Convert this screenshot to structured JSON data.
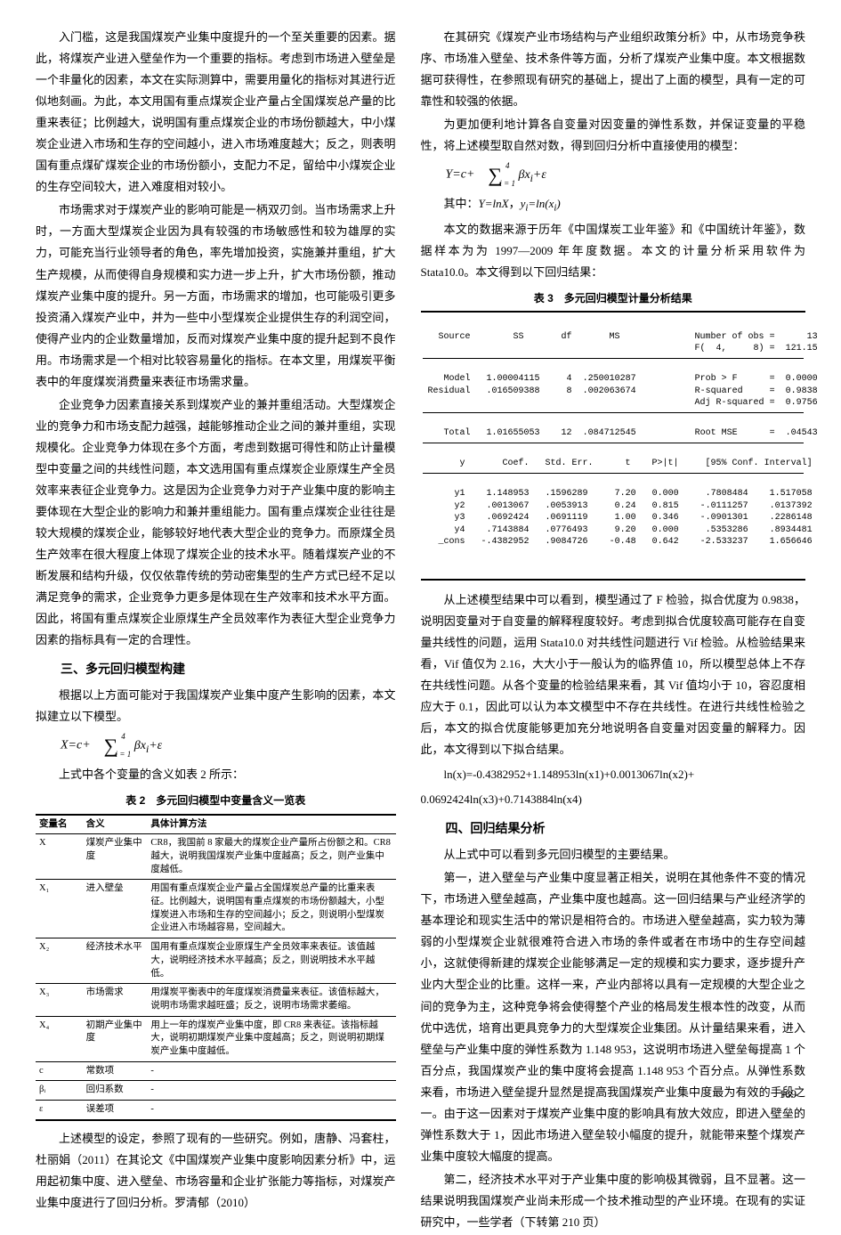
{
  "page_number": "169",
  "left_col": {
    "p1": "入门槛，这是我国煤炭产业集中度提升的一个至关重要的因素。据此，将煤炭产业进入壁垒作为一个重要的指标。考虑到市场进入壁垒是一个非量化的因素，本文在实际测算中，需要用量化的指标对其进行近似地刻画。为此，本文用国有重点煤炭企业产量占全国煤炭总产量的比重来表征；比例越大，说明国有重点煤炭企业的市场份额越大，中小煤炭企业进入市场和生存的空间越小，进入市场难度越大；反之，则表明国有重点煤矿煤炭企业的市场份额小，支配力不足，留给中小煤炭企业的生存空间较大，进入难度相对较小。",
    "p2": "市场需求对于煤炭产业的影响可能是一柄双刃剑。当市场需求上升时，一方面大型煤炭企业因为具有较强的市场敏感性和较为雄厚的实力，可能充当行业领导者的角色，率先增加投资，实施兼并重组，扩大生产规模，从而使得自身规模和实力进一步上升，扩大市场份额，推动煤炭产业集中度的提升。另一方面，市场需求的增加，也可能吸引更多投资涌入煤炭产业中，并为一些中小型煤炭企业提供生存的利润空间，使得产业内的企业数量增加，反而对煤炭产业集中度的提升起到不良作用。市场需求是一个相对比较容易量化的指标。在本文里，用煤炭平衡表中的年度煤炭消费量来表征市场需求量。",
    "p3": "企业竞争力因素直接关系到煤炭产业的兼并重组活动。大型煤炭企业的竞争力和市场支配力越强，越能够推动企业之间的兼并重组，实现规模化。企业竞争力体现在多个方面，考虑到数据可得性和防止计量模型中变量之间的共线性问题，本文选用国有重点煤炭企业原煤生产全员效率来表征企业竞争力。这是因为企业竞争力对于产业集中度的影响主要体现在大型企业的影响力和兼并重组能力。国有重点煤炭企业往往是较大规模的煤炭企业，能够较好地代表大型企业的竞争力。而原煤全员生产效率在很大程度上体现了煤炭企业的技术水平。随着煤炭产业的不断发展和结构升级，仅仅依靠传统的劳动密集型的生产方式已经不足以满足竞争的需求，企业竞争力更多是体现在生产效率和技术水平方面。因此，将国有重点煤炭企业原煤生产全员效率作为表征大型企业竞争力因素的指标具有一定的合理性。",
    "h1": "三、多元回归模型构建",
    "p4": "根据以上方面可能对于我国煤炭产业集中度产生影响的因素，本文拟建立以下模型。",
    "eq1_prefix": "X=c+",
    "eq1_sup": "4",
    "eq1_sub": "i = 1",
    "eq1_suffix": "βx<sub>i</sub>+ε",
    "eq1_note": "上式中各个变量的含义如表 2 所示：",
    "table2_caption": "表 2　多元回归模型中变量含义一览表",
    "p5": "上述模型的设定，参照了现有的一些研究。例如，唐静、冯套柱，杜丽娟（2011）在其论文《中国煤炭产业集中度影响因素分析》中，运用起初集中度、进入壁垒、市场容量和企业扩张能力等指标，对煤炭产业集中度进行了回归分析。罗清郁（2010）"
  },
  "table2": {
    "headers": [
      "变量名",
      "含义",
      "具体计算方法"
    ],
    "rows": [
      [
        "X",
        "煤炭产业集中度",
        "CR8，我国前 8 家最大的煤炭企业产量所占份额之和。CR8 越大，说明我国煤炭产业集中度越高；反之，则产业集中度越低。"
      ],
      [
        "X₁",
        "进入壁垒",
        "用国有重点煤炭企业产量占全国煤炭总产量的比重来表征。比例越大，说明国有重点煤炭的市场份额越大，小型煤炭进入市场和生存的空间越小；反之，则说明小型煤炭企业进入市场越容易，空间越大。"
      ],
      [
        "X₂",
        "经济技术水平",
        "国用有重点煤炭企业原煤生产全员效率来表征。该值越大，说明经济技术水平越高；反之，则说明技术水平越低。"
      ],
      [
        "X₃",
        "市场需求",
        "用煤炭平衡表中的年度煤炭消费量来表征。该值标越大，说明市场需求越旺盛；反之，说明市场需求萎缩。"
      ],
      [
        "X₄",
        "初期产业集中度",
        "用上一年的煤炭产业集中度，即 CR8 来表征。该指标越大，说明初期煤炭产业集中度越高；反之，则说明初期煤炭产业集中度越低。"
      ],
      [
        "c",
        "常数项",
        "-"
      ],
      [
        "βᵢ",
        "回归系数",
        "-"
      ],
      [
        "ε",
        "误差项",
        "-"
      ]
    ],
    "col_widths": [
      "13%",
      "18%",
      "69%"
    ],
    "font_size": 10.5,
    "border_color": "#000000"
  },
  "right_col": {
    "p1": "在其研究《煤炭产业市场结构与产业组织政策分析》中，从市场竞争秩序、市场准入壁垒、技术条件等方面，分析了煤炭产业集中度。本文根据数据可获得性，在参照现有研究的基础上，提出了上面的模型，具有一定的可靠性和较强的依据。",
    "p2": "为更加便利地计算各自变量对因变量的弹性系数，并保证变量的平稳性，将上述模型取自然对数，得到回归分析中直接使用的模型：",
    "eq2_prefix": "Y=c+",
    "eq2_sup": "4",
    "eq2_sub": "i = 1",
    "eq2_suffix": "βx<sub>i</sub>+ε",
    "eq2_note": "其中：Y=lnX, y<sub>i</sub>=ln(x<sub>i</sub>)",
    "p3": "本文的数据来源于历年《中国煤炭工业年鉴》和《中国统计年鉴》，数据样本为为 1997—2009 年年度数据。本文的计量分析采用软件为 Stata10.0。本文得到以下回归结果：",
    "table3_caption": "表 3　多元回归模型计量分析结果",
    "p4": "从上述模型结果中可以看到，模型通过了 F 检验，拟合优度为 0.9838，说明因变量对于自变量的解释程度较好。考虑到拟合优度较高可能存在自变量共线性的问题，运用 Stata10.0 对共线性问题进行 Vif 检验。从检验结果来看，Vif 值仅为 2.16，大大小于一般认为的临界值 10，所以模型总体上不存在共线性问题。从各个变量的检验结果来看，其 Vif 值均小于 10，容忍度相应大于 0.1，因此可以认为本文模型中不存在共线性。在进行共线性检验之后，本文的拟合优度能够更加充分地说明各自变量对因变量的解释力。因此，本文得到以下拟合结果。",
    "eq_result_l1": "ln(x)=-0.4382952+1.148953ln(x1)+0.0013067ln(x2)+",
    "eq_result_l2": "0.0692424ln(x3)+0.7143884ln(x4)",
    "h2": "四、回归结果分析",
    "p5": "从上式中可以看到多元回归模型的主要结果。",
    "p6": "第一，进入壁垒与产业集中度显著正相关，说明在其他条件不变的情况下，市场进入壁垒越高，产业集中度也越高。这一回归结果与产业经济学的基本理论和现实生活中的常识是相符合的。市场进入壁垒越高，实力较为薄弱的小型煤炭企业就很难符合进入市场的条件或者在市场中的生存空间越小，这就使得新建的煤炭企业能够满足一定的规模和实力要求，逐步提升产业内大型企业的比重。这样一来，产业内部将以具有一定规模的大型企业之间的竞争为主，这种竞争将会使得整个产业的格局发生根本性的改变，从而优中选优，培育出更具竞争力的大型煤炭企业集团。从计量结果来看，进入壁垒与产业集中度的弹性系数为 1.148 953，这说明市场进入壁垒每提高 1 个百分点，我国煤炭产业的集中度将会提高 1.148 953 个百分点。从弹性系数来看，市场进入壁垒提升显然是提高我国煤炭产业集中度最为有效的手段之一。由于这一因素对于煤炭产业集中度的影响具有放大效应，即进入壁垒的弹性系数大于 1，因此市场进入壁垒较小幅度的提升，就能带来整个煤炭产业集中度较大幅度的提高。",
    "p7": "第二，经济技术水平对于产业集中度的影响极其微弱，且不显著。这一结果说明我国煤炭产业尚未形成一个技术推动型的产业环境。在现有的实证研究中，一些学者（下转第 210 页）"
  },
  "table3": {
    "type": "stata_output",
    "font_family": "Courier New",
    "font_size": 10,
    "border_color": "#000000",
    "background": "#ffffff",
    "top_section": {
      "left_headers": [
        "Source",
        "Model",
        "Residual",
        "Total"
      ],
      "cols": [
        "SS",
        "df",
        "MS"
      ],
      "data": [
        [
          "1.00004115",
          "4",
          ".250010287"
        ],
        [
          ".016509388",
          "8",
          ".002063674"
        ],
        [
          "1.01655053",
          "12",
          ".084712545"
        ]
      ],
      "right_stats": [
        [
          "Number of obs",
          "=",
          "13"
        ],
        [
          "F(  4,     8)",
          "=",
          "121.15"
        ],
        [
          "Prob > F",
          "=",
          "0.0000"
        ],
        [
          "R-squared",
          "=",
          "0.9838"
        ],
        [
          "Adj R-squared",
          "=",
          "0.9756"
        ],
        [
          "Root MSE",
          "=",
          ".04543"
        ]
      ]
    },
    "bottom_section": {
      "headers": [
        "y",
        "Coef.",
        "Std. Err.",
        "t",
        "P>|t|",
        "[95% Conf. Interval]"
      ],
      "rows": [
        [
          "y1",
          "1.148953",
          ".1596289",
          "7.20",
          "0.000",
          ".7808484",
          "1.517058"
        ],
        [
          "y2",
          ".0013067",
          ".0053913",
          "0.24",
          "0.815",
          "-.0111257",
          ".0137392"
        ],
        [
          "y3",
          ".0692424",
          ".0691119",
          "1.00",
          "0.346",
          "-.0901301",
          ".2286148"
        ],
        [
          "y4",
          ".7143884",
          ".0776493",
          "9.20",
          "0.000",
          ".5353286",
          ".8934481"
        ],
        [
          "_cons",
          "-.4382952",
          ".9084726",
          "-0.48",
          "0.642",
          "-2.533237",
          "1.656646"
        ]
      ]
    }
  }
}
